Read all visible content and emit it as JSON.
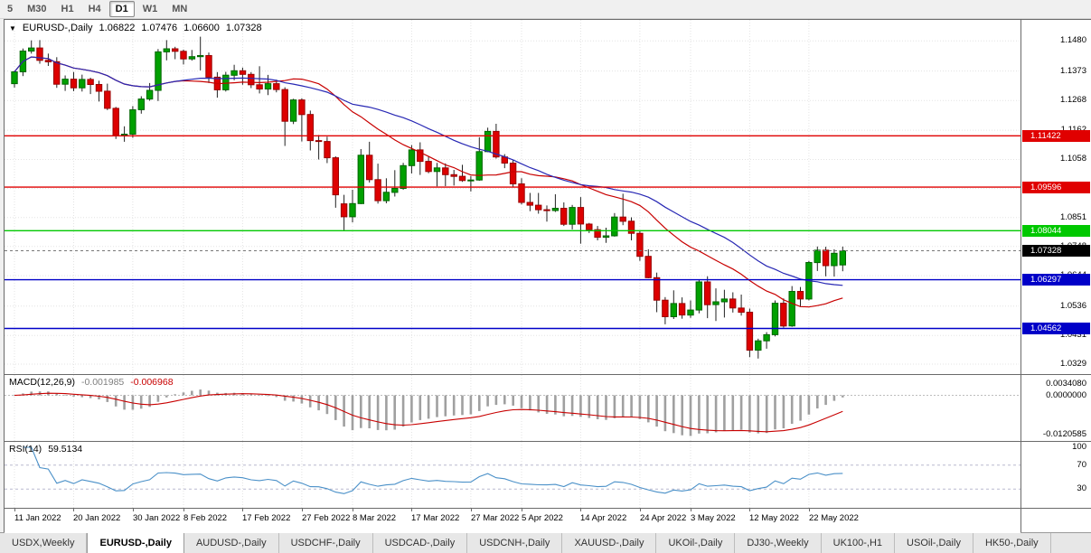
{
  "toolbar": {
    "timeframes": [
      {
        "label": "5",
        "active": false
      },
      {
        "label": "M30",
        "active": false
      },
      {
        "label": "H1",
        "active": false
      },
      {
        "label": "H4",
        "active": false
      },
      {
        "label": "D1",
        "active": true
      },
      {
        "label": "W1",
        "active": false
      },
      {
        "label": "MN",
        "active": false
      }
    ]
  },
  "chart": {
    "symbol_line": {
      "expander": "▼",
      "title": "EURUSD-,Daily",
      "open": "1.06822",
      "high": "1.07476",
      "low": "1.06600",
      "close": "1.07328"
    },
    "price_axis": {
      "ticks": [
        "1.1480",
        "1.1373",
        "1.1268",
        "1.1162",
        "1.1058",
        "1.0955",
        "1.0851",
        "1.0748",
        "1.0644",
        "1.0536",
        "1.0431",
        "1.0329"
      ]
    },
    "hlines": [
      {
        "label": "1.11422",
        "price": 1.11422,
        "color": "#e00000"
      },
      {
        "label": "1.09596",
        "price": 1.09596,
        "color": "#e00000"
      },
      {
        "label": "1.08044",
        "price": 1.08044,
        "color": "#00c800"
      },
      {
        "label": "1.06297",
        "price": 1.06297,
        "color": "#0000c8"
      },
      {
        "label": "1.04562",
        "price": 1.04562,
        "color": "#0000c8"
      }
    ],
    "current_price": {
      "label": "1.07328",
      "price": 1.07328,
      "bg": "#000000"
    },
    "macd": {
      "label": "MACD(12,26,9)",
      "main_value": "-0.001985",
      "signal_value": "-0.006968",
      "axis": [
        {
          "label": "0.0034080",
          "value": 0.003408
        },
        {
          "label": "0.0000000",
          "value": 0
        },
        {
          "label": "-0.0120585",
          "value": -0.0120585
        }
      ]
    },
    "rsi": {
      "label": "RSI(14)",
      "value": "59.5134",
      "levels": [
        70,
        30
      ],
      "axis": [
        {
          "label": "100",
          "value": 100
        },
        {
          "label": "70",
          "value": 70
        },
        {
          "label": "30",
          "value": 30
        }
      ]
    },
    "colors": {
      "bull": "#00a000",
      "bull_border": "#006600",
      "bear": "#dd0000",
      "bear_border": "#990000",
      "wick": "#222222",
      "ma_fast": "#c80000",
      "ma_slow": "#2828b4",
      "grid": "#e3e3e3",
      "macd_hist": "#a0a0a0",
      "macd_signal": "#c80000",
      "rsi_line": "#4a90c8"
    }
  },
  "chart_data": {
    "type": "candlestick",
    "symbol": "EURUSD-",
    "period": "Daily",
    "price_range": [
      1.0294,
      1.1555
    ],
    "x_ticks": [
      {
        "i": 0,
        "label": "11 Jan 2022"
      },
      {
        "i": 7,
        "label": "20 Jan 2022"
      },
      {
        "i": 14,
        "label": "30 Jan 2022"
      },
      {
        "i": 20,
        "label": "8 Feb 2022"
      },
      {
        "i": 27,
        "label": "17 Feb 2022"
      },
      {
        "i": 34,
        "label": "27 Feb 2022"
      },
      {
        "i": 40,
        "label": "8 Mar 2022"
      },
      {
        "i": 47,
        "label": "17 Mar 2022"
      },
      {
        "i": 54,
        "label": "27 Mar 2022"
      },
      {
        "i": 60,
        "label": "5 Apr 2022"
      },
      {
        "i": 67,
        "label": "14 Apr 2022"
      },
      {
        "i": 74,
        "label": "24 Apr 2022"
      },
      {
        "i": 80,
        "label": "3 May 2022"
      },
      {
        "i": 87,
        "label": "12 May 2022"
      },
      {
        "i": 94,
        "label": "22 May 2022"
      }
    ],
    "candles": [
      [
        1.1328,
        1.1374,
        1.1314,
        1.137
      ],
      [
        1.137,
        1.1453,
        1.1355,
        1.1444
      ],
      [
        1.1444,
        1.1482,
        1.1435,
        1.1455
      ],
      [
        1.1455,
        1.1483,
        1.1399,
        1.1411
      ],
      [
        1.1411,
        1.1435,
        1.1391,
        1.1406
      ],
      [
        1.1406,
        1.1422,
        1.1313,
        1.1326
      ],
      [
        1.1326,
        1.1357,
        1.1302,
        1.1344
      ],
      [
        1.1344,
        1.1369,
        1.1301,
        1.1313
      ],
      [
        1.1313,
        1.136,
        1.13,
        1.1343
      ],
      [
        1.1343,
        1.1349,
        1.1291,
        1.1325
      ],
      [
        1.1325,
        1.1338,
        1.1264,
        1.1301
      ],
      [
        1.1301,
        1.1328,
        1.1234,
        1.124
      ],
      [
        1.124,
        1.1245,
        1.1131,
        1.1144
      ],
      [
        1.1144,
        1.1176,
        1.1121,
        1.1148
      ],
      [
        1.1148,
        1.1248,
        1.1135,
        1.1235
      ],
      [
        1.1235,
        1.1283,
        1.1221,
        1.1273
      ],
      [
        1.1273,
        1.133,
        1.1267,
        1.1304
      ],
      [
        1.1304,
        1.1451,
        1.1266,
        1.1441
      ],
      [
        1.1441,
        1.1483,
        1.1411,
        1.1452
      ],
      [
        1.1452,
        1.1459,
        1.1415,
        1.1443
      ],
      [
        1.1443,
        1.1449,
        1.1396,
        1.1416
      ],
      [
        1.1416,
        1.1448,
        1.141,
        1.1424
      ],
      [
        1.1424,
        1.1495,
        1.1375,
        1.1428
      ],
      [
        1.1428,
        1.1439,
        1.133,
        1.1351
      ],
      [
        1.1351,
        1.1369,
        1.1278,
        1.1306
      ],
      [
        1.1306,
        1.137,
        1.13,
        1.1358
      ],
      [
        1.1358,
        1.1395,
        1.134,
        1.1374
      ],
      [
        1.1374,
        1.1385,
        1.1324,
        1.1361
      ],
      [
        1.1361,
        1.1369,
        1.1312,
        1.1324
      ],
      [
        1.1324,
        1.139,
        1.1293,
        1.1309
      ],
      [
        1.1309,
        1.1359,
        1.1287,
        1.1328
      ],
      [
        1.1328,
        1.1342,
        1.1297,
        1.1307
      ],
      [
        1.1307,
        1.1315,
        1.1106,
        1.1194
      ],
      [
        1.1194,
        1.1274,
        1.1184,
        1.127
      ],
      [
        1.127,
        1.1276,
        1.1122,
        1.1218
      ],
      [
        1.1218,
        1.1232,
        1.109,
        1.1125
      ],
      [
        1.1125,
        1.1145,
        1.1058,
        1.1122
      ],
      [
        1.1122,
        1.1139,
        1.1045,
        1.1064
      ],
      [
        1.1064,
        1.1069,
        1.0886,
        1.0932
      ],
      [
        1.09,
        1.0932,
        1.0806,
        1.0854
      ],
      [
        1.0854,
        1.095,
        1.0834,
        1.0901
      ],
      [
        1.0901,
        1.1095,
        1.0899,
        1.1073
      ],
      [
        1.1073,
        1.1121,
        1.0976,
        1.0986
      ],
      [
        1.0986,
        1.1043,
        1.0901,
        1.0911
      ],
      [
        1.0911,
        1.0991,
        1.0902,
        1.0941
      ],
      [
        1.0941,
        1.102,
        1.0926,
        1.0955
      ],
      [
        1.0955,
        1.1046,
        1.095,
        1.1036
      ],
      [
        1.1036,
        1.1109,
        1.1008,
        1.1092
      ],
      [
        1.1092,
        1.1119,
        1.1003,
        1.1051
      ],
      [
        1.1051,
        1.1069,
        1.1009,
        1.1015
      ],
      [
        1.1015,
        1.1046,
        1.0962,
        1.1028
      ],
      [
        1.1028,
        1.1044,
        1.0963,
        1.1004
      ],
      [
        1.1004,
        1.1021,
        1.0965,
        1.0998
      ],
      [
        1.0998,
        1.1039,
        1.0978,
        1.0983
      ],
      [
        1.0983,
        1.0999,
        1.0944,
        1.0985
      ],
      [
        1.0985,
        1.1137,
        1.0982,
        1.1086
      ],
      [
        1.1086,
        1.1171,
        1.1084,
        1.1158
      ],
      [
        1.1158,
        1.1185,
        1.1061,
        1.1067
      ],
      [
        1.1067,
        1.1077,
        1.1027,
        1.1045
      ],
      [
        1.1045,
        1.1055,
        1.096,
        1.0971
      ],
      [
        1.0971,
        1.0991,
        1.0898,
        1.0905
      ],
      [
        1.0905,
        1.0939,
        1.0874,
        1.0895
      ],
      [
        1.0895,
        1.0939,
        1.0865,
        1.0879
      ],
      [
        1.0879,
        1.0894,
        1.0837,
        1.0876
      ],
      [
        1.0876,
        1.0934,
        1.0871,
        1.0884
      ],
      [
        1.0884,
        1.0905,
        1.0821,
        1.0827
      ],
      [
        1.0827,
        1.0896,
        1.0809,
        1.0887
      ],
      [
        1.0887,
        1.0924,
        1.0758,
        1.0828
      ],
      [
        1.0828,
        1.0832,
        1.0796,
        1.0808
      ],
      [
        1.0808,
        1.0821,
        1.077,
        1.0781
      ],
      [
        1.0781,
        1.0815,
        1.0761,
        1.0786
      ],
      [
        1.0786,
        1.0867,
        1.0783,
        1.0853
      ],
      [
        1.0853,
        1.0936,
        1.0824,
        1.0838
      ],
      [
        1.0838,
        1.0852,
        1.077,
        1.0795
      ],
      [
        1.0795,
        1.0804,
        1.0697,
        1.0713
      ],
      [
        1.0713,
        1.0738,
        1.0635,
        1.0637
      ],
      [
        1.0637,
        1.0655,
        1.0514,
        1.0557
      ],
      [
        1.0557,
        1.0568,
        1.0471,
        1.0498
      ],
      [
        1.0498,
        1.0592,
        1.049,
        1.0545
      ],
      [
        1.0545,
        1.0567,
        1.0491,
        1.0504
      ],
      [
        1.0504,
        1.0556,
        1.0494,
        1.0522
      ],
      [
        1.0522,
        1.063,
        1.051,
        1.0622
      ],
      [
        1.0622,
        1.0642,
        1.0493,
        1.0541
      ],
      [
        1.0541,
        1.0599,
        1.0483,
        1.0551
      ],
      [
        1.0551,
        1.0594,
        1.0495,
        1.0561
      ],
      [
        1.0561,
        1.0585,
        1.0513,
        1.0529
      ],
      [
        1.0529,
        1.0577,
        1.0502,
        1.0514
      ],
      [
        1.0514,
        1.0527,
        1.0354,
        1.0379
      ],
      [
        1.0379,
        1.042,
        1.0349,
        1.0412
      ],
      [
        1.0412,
        1.0443,
        1.0384,
        1.0434
      ],
      [
        1.0434,
        1.0556,
        1.0428,
        1.0546
      ],
      [
        1.0546,
        1.0563,
        1.0459,
        1.0465
      ],
      [
        1.0465,
        1.0607,
        1.0462,
        1.0588
      ],
      [
        1.0588,
        1.0604,
        1.0533,
        1.0561
      ],
      [
        1.0561,
        1.0697,
        1.0556,
        1.0691
      ],
      [
        1.0691,
        1.0748,
        1.0661,
        1.0735
      ],
      [
        1.0735,
        1.0747,
        1.0642,
        1.068
      ],
      [
        1.068,
        1.0738,
        1.0641,
        1.0724
      ],
      [
        1.06822,
        1.07476,
        1.066,
        1.07328
      ]
    ]
  },
  "tabs": [
    {
      "label": "USDX,Weekly",
      "active": false
    },
    {
      "label": "EURUSD-,Daily",
      "active": true
    },
    {
      "label": "AUDUSD-,Daily",
      "active": false
    },
    {
      "label": "USDCHF-,Daily",
      "active": false
    },
    {
      "label": "USDCAD-,Daily",
      "active": false
    },
    {
      "label": "USDCNH-,Daily",
      "active": false
    },
    {
      "label": "XAUUSD-,Daily",
      "active": false
    },
    {
      "label": "UKOil-,Daily",
      "active": false
    },
    {
      "label": "DJ30-,Weekly",
      "active": false
    },
    {
      "label": "UK100-,H1",
      "active": false
    },
    {
      "label": "USOil-,Daily",
      "active": false
    },
    {
      "label": "HK50-,Daily",
      "active": false
    }
  ]
}
